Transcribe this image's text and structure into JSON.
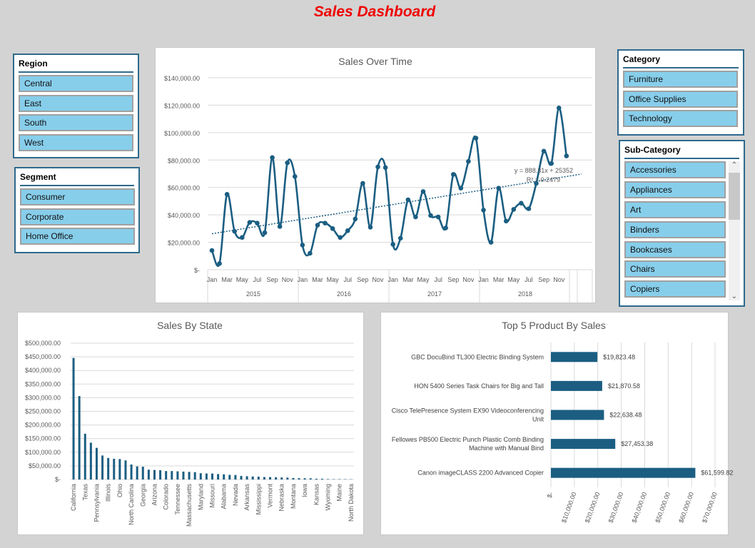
{
  "dashboard_title": "Sales Dashboard",
  "colors": {
    "accent": "#1b5e82",
    "title": "#f00000",
    "slicer_item": "#87ceeb",
    "slicer_border": "#2e6a8c"
  },
  "slicers": {
    "region": {
      "title": "Region",
      "items": [
        "Central",
        "East",
        "South",
        "West"
      ]
    },
    "segment": {
      "title": "Segment",
      "items": [
        "Consumer",
        "Corporate",
        "Home Office"
      ]
    },
    "category": {
      "title": "Category",
      "items": [
        "Furniture",
        "Office Supplies",
        "Technology"
      ]
    },
    "sub_category": {
      "title": "Sub-Category",
      "items": [
        "Accessories",
        "Appliances",
        "Art",
        "Binders",
        "Bookcases",
        "Chairs",
        "Copiers"
      ],
      "scroll_up_icon": "chevron-up-icon",
      "scroll_down_icon": "chevron-down-icon"
    }
  },
  "chart_data": [
    {
      "type": "line",
      "title": "Sales Over Time",
      "years": [
        "2015",
        "2016",
        "2017",
        "2018"
      ],
      "month_labels": [
        "Jan",
        "",
        "Mar",
        "",
        "May",
        "",
        "Jul",
        "",
        "Sep",
        "",
        "Nov",
        ""
      ],
      "values": [
        14000,
        4500,
        55000,
        28000,
        23500,
        34500,
        34000,
        27000,
        81800,
        31500,
        78000,
        68000,
        18000,
        12000,
        32500,
        34000,
        30000,
        23500,
        28500,
        37000,
        63000,
        31000,
        75000,
        74500,
        18500,
        23000,
        51000,
        38500,
        57000,
        39500,
        38500,
        30500,
        69500,
        59500,
        79000,
        96000,
        43500,
        20000,
        59500,
        35500,
        44000,
        48500,
        44500,
        63000,
        86500,
        77500,
        118000,
        83000
      ],
      "ylim": [
        0,
        140000
      ],
      "yticks": [
        "$-",
        "$20,000.00",
        "$40,000.00",
        "$60,000.00",
        "$80,000.00",
        "$100,000.00",
        "$120,000.00",
        "$140,000.00"
      ],
      "trendline": {
        "slope": 888.31,
        "intercept": 25352,
        "equation": "y = 888.31x + 25352",
        "r_squared": "R² = 0.2479"
      },
      "grid": true
    },
    {
      "type": "bar",
      "title": "Sales By State",
      "categories": [
        "California",
        "",
        "Texas",
        "",
        "Pennsylvania",
        "",
        "Illinois",
        "",
        "Ohio",
        "",
        "North Carolina",
        "",
        "Georgia",
        "",
        "Arizona",
        "",
        "Colorado",
        "",
        "Tennessee",
        "",
        "Massachusetts",
        "",
        "Maryland",
        "",
        "Missouri",
        "",
        "Alabama",
        "",
        "Nevada",
        "",
        "Arkansas",
        "",
        "Mississippi",
        "",
        "Vermont",
        "",
        "Nebraska",
        "",
        "Montana",
        "",
        "Iowa",
        "",
        "Kansas",
        "",
        "Wyoming",
        "",
        "Maine",
        "",
        "North Dakota"
      ],
      "values": [
        446000,
        306000,
        168000,
        135000,
        116000,
        88000,
        79000,
        76000,
        75000,
        70000,
        55000,
        48000,
        47000,
        36000,
        35000,
        34000,
        31000,
        31000,
        30000,
        29000,
        28000,
        27000,
        23000,
        22000,
        22000,
        20000,
        19000,
        17000,
        16500,
        13000,
        12000,
        11000,
        10500,
        9000,
        9000,
        8500,
        7500,
        7000,
        5500,
        4800,
        4600,
        4300,
        2900,
        2800,
        1600,
        1300,
        1300,
        1200,
        900
      ],
      "ylim": [
        0,
        500000
      ],
      "yticks": [
        "$-",
        "$50,000.00",
        "$100,000.00",
        "$150,000.00",
        "$200,000.00",
        "$250,000.00",
        "$300,000.00",
        "$350,000.00",
        "$400,000.00",
        "$450,000.00",
        "$500,000.00"
      ],
      "grid": true
    },
    {
      "type": "bar",
      "orientation": "horizontal",
      "title": "Top 5 Product By Sales",
      "categories": [
        [
          "GBC DocuBind TL300 Electric Binding System"
        ],
        [
          "HON 5400 Series Task Chairs for Big and Tall"
        ],
        [
          "Cisco TelePresence System EX90 Videoconferencing",
          "Unit"
        ],
        [
          "Fellowes PB500 Electric Punch Plastic Comb Binding",
          "Machine with Manual Bind"
        ],
        [
          "Canon imageCLASS 2200 Advanced Copier"
        ]
      ],
      "values": [
        19823.48,
        21870.58,
        22638.48,
        27453.38,
        61599.82
      ],
      "data_labels": [
        "$19,823.48",
        "$21,870.58",
        "$22,638.48",
        "$27,453.38",
        "$61,599.82"
      ],
      "xlim": [
        0,
        70000
      ],
      "xticks": [
        "$-",
        "$10,000.00",
        "$20,000.00",
        "$30,000.00",
        "$40,000.00",
        "$50,000.00",
        "$60,000.00",
        "$70,000.00"
      ],
      "grid": true
    }
  ]
}
